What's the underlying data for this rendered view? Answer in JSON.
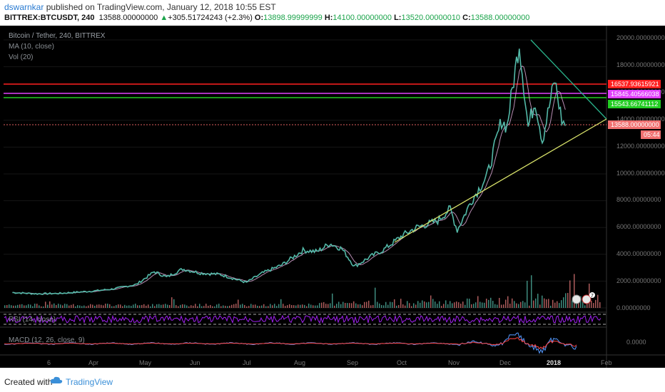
{
  "header": {
    "author": "dswarnkar",
    "published_text": " published on TradingView.com, January 12, 2018 10:55 EST",
    "symbol": "BITTREX:BTCUSDT, 240",
    "last": "13588.00000000",
    "change_arrow": "▲",
    "change": "+305.51724243 (+2.3%)",
    "o_label": "O:",
    "o": "13898.99999999",
    "h_label": "H:",
    "h": "14100.00000000",
    "l_label": "L:",
    "l": "13520.00000010",
    "c_label": "C:",
    "c": "13588.00000000"
  },
  "legend": {
    "title": "Bitcoin / Tether, 240, BITTREX",
    "ma": "MA (10, close)",
    "vol": "Vol (20)",
    "rsi": "RSI (14, close)",
    "macd": "MACD (12, 26, close, 9)"
  },
  "price_axis": {
    "ticks": [
      "20000.00000000",
      "18000.00000000",
      "16000.00000000",
      "14000.00000000",
      "12000.00000000",
      "10000.00000000",
      "8000.00000000",
      "6000.00000000",
      "4000.00000000",
      "2000.00000000",
      "0.00000000"
    ]
  },
  "macd_axis": {
    "tick": "0.0000"
  },
  "time_axis": {
    "labels": [
      "6",
      "Apr",
      "May",
      "Jun",
      "Jul",
      "Aug",
      "Sep",
      "Oct",
      "Nov",
      "Dec",
      "2018",
      "Feb"
    ]
  },
  "price_tags": {
    "red": "16537.93615921",
    "magenta": "15845.40566038",
    "green": "15543.66741112",
    "last": "13588.00000000",
    "countdown": "05:44"
  },
  "badges": {
    "events": "7"
  },
  "colors": {
    "bg": "#000000",
    "red_line": "#ff2020",
    "magenta_line": "#e040fb",
    "green_line": "#22cc22",
    "teal_trend": "#2ab48c",
    "yellow_trend": "#d9e36a",
    "ma": "#e6b0e0",
    "up": "#53b9a8",
    "down": "#e57a7a",
    "rsi": "#a020f0",
    "macd": "#5599ff",
    "signal": "#ff4444"
  },
  "footer": {
    "created": "Created with",
    "brand": "TradingView"
  },
  "chart_data": {
    "type": "line",
    "title": "Bitcoin / Tether, 240, BITTREX",
    "x_labels": [
      "6",
      "Apr",
      "May",
      "Jun",
      "Jul",
      "Aug",
      "Sep",
      "Oct",
      "Nov",
      "Dec",
      "2018",
      "Feb"
    ],
    "ylim": [
      0,
      21000
    ],
    "y_ticks": [
      0,
      2000,
      4000,
      6000,
      8000,
      10000,
      12000,
      14000,
      16000,
      18000,
      20000
    ],
    "price_path": [
      [
        "2017-03-06",
        1150
      ],
      [
        "2017-03-20",
        1050
      ],
      [
        "2017-04-01",
        1080
      ],
      [
        "2017-04-20",
        1250
      ],
      [
        "2017-05-01",
        1400
      ],
      [
        "2017-05-15",
        1750
      ],
      [
        "2017-05-25",
        2700
      ],
      [
        "2017-06-01",
        2300
      ],
      [
        "2017-06-10",
        2900
      ],
      [
        "2017-06-20",
        2600
      ],
      [
        "2017-07-01",
        2500
      ],
      [
        "2017-07-16",
        1900
      ],
      [
        "2017-07-25",
        2600
      ],
      [
        "2017-08-05",
        3200
      ],
      [
        "2017-08-17",
        4300
      ],
      [
        "2017-08-25",
        4200
      ],
      [
        "2017-09-01",
        4800
      ],
      [
        "2017-09-08",
        4400
      ],
      [
        "2017-09-15",
        3100
      ],
      [
        "2017-09-25",
        3900
      ],
      [
        "2017-10-01",
        4300
      ],
      [
        "2017-10-12",
        5400
      ],
      [
        "2017-10-20",
        6000
      ],
      [
        "2017-11-01",
        6500
      ],
      [
        "2017-11-08",
        7400
      ],
      [
        "2017-11-12",
        5800
      ],
      [
        "2017-11-20",
        8000
      ],
      [
        "2017-11-29",
        9900
      ],
      [
        "2017-12-07",
        14000
      ],
      [
        "2017-12-10",
        13500
      ],
      [
        "2017-12-17",
        19800
      ],
      [
        "2017-12-22",
        13500
      ],
      [
        "2017-12-26",
        15500
      ],
      [
        "2017-12-30",
        12500
      ],
      [
        "2018-01-06",
        17000
      ],
      [
        "2018-01-10",
        14000
      ],
      [
        "2018-01-12",
        13588
      ]
    ],
    "moving_average": "MA (10, close)",
    "horizontal_levels": [
      16537.93615921,
      15845.40566038,
      15543.66741112,
      13588.0
    ],
    "trendlines": [
      {
        "color": "teal",
        "from": [
          "2017-12-17",
          20000
        ],
        "to": [
          "2018-02-01",
          14000
        ]
      },
      {
        "color": "yellow",
        "from": [
          "2017-09-25",
          4800
        ],
        "to": [
          "2018-02-01",
          14000
        ]
      }
    ],
    "indicators": [
      "Vol (20)",
      "RSI (14, close)",
      "MACD (12, 26, close, 9)"
    ],
    "grid": true
  }
}
